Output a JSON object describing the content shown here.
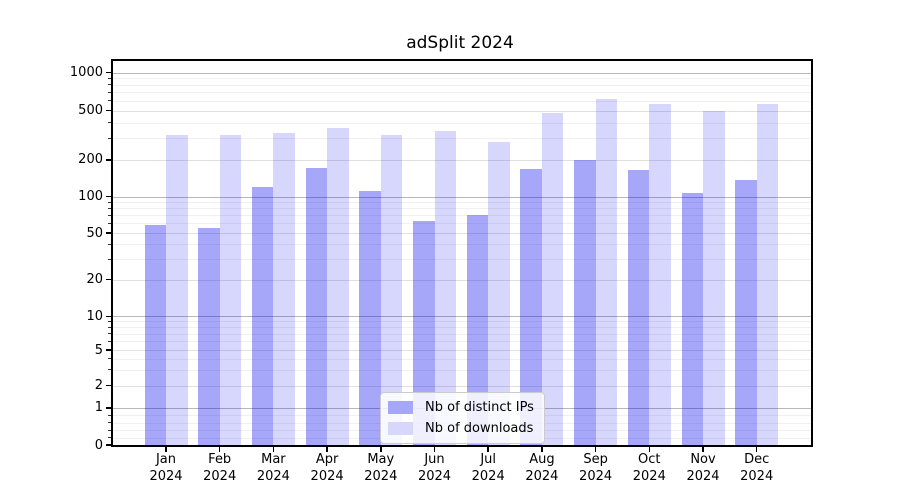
{
  "chart_data": {
    "type": "bar",
    "title": "adSplit 2024",
    "x": {
      "months": [
        "Jan",
        "Feb",
        "Mar",
        "Apr",
        "May",
        "Jun",
        "Jul",
        "Aug",
        "Sep",
        "Oct",
        "Nov",
        "Dec"
      ],
      "year": "2024"
    },
    "series": [
      {
        "name": "Nb of distinct IPs",
        "color": "rgba(0,0,240,0.345)",
        "legend_color": "#a7a7fa",
        "values": [
          58,
          55,
          120,
          170,
          110,
          63,
          70,
          168,
          200,
          165,
          106,
          137
        ]
      },
      {
        "name": "Nb of downloads",
        "color": "rgba(0,0,240,0.155)",
        "legend_color": "#d7d7fc",
        "values": [
          320,
          320,
          330,
          365,
          320,
          345,
          278,
          475,
          620,
          560,
          500,
          560
        ]
      }
    ],
    "y_axis": {
      "scale": "asinh-log",
      "ylim": [
        0,
        1000
      ],
      "ticks": [
        {
          "v": 0,
          "label": "0",
          "f": 1.0
        },
        {
          "v": 1,
          "label": "1",
          "f": 0.9033
        },
        {
          "v": 2,
          "label": "2",
          "f": 0.8452
        },
        {
          "v": 5,
          "label": "5",
          "f": 0.7529
        },
        {
          "v": 10,
          "label": "10",
          "f": 0.665
        },
        {
          "v": 20,
          "label": "20",
          "f": 0.5696
        },
        {
          "v": 50,
          "label": "50",
          "f": 0.4481
        },
        {
          "v": 100,
          "label": "100",
          "f": 0.3529
        },
        {
          "v": 200,
          "label": "200",
          "f": 0.2575
        },
        {
          "v": 500,
          "label": "500",
          "f": 0.1293
        },
        {
          "v": 1000,
          "label": "1000",
          "f": 0.0304
        }
      ],
      "minor_gridlines": [
        0.2,
        0.4,
        0.6,
        0.8,
        3,
        4,
        6,
        7,
        8,
        9,
        30,
        40,
        60,
        70,
        80,
        90,
        300,
        400,
        600,
        700,
        800,
        900
      ]
    },
    "legend": {
      "position": "lower center"
    },
    "grid": true,
    "colors": {
      "major_grid": "#b8b8b8",
      "sub_grid": "#e0e0e0",
      "minor_grid": "#f0f0f0",
      "axis": "#000000",
      "background": "#ffffff"
    }
  }
}
